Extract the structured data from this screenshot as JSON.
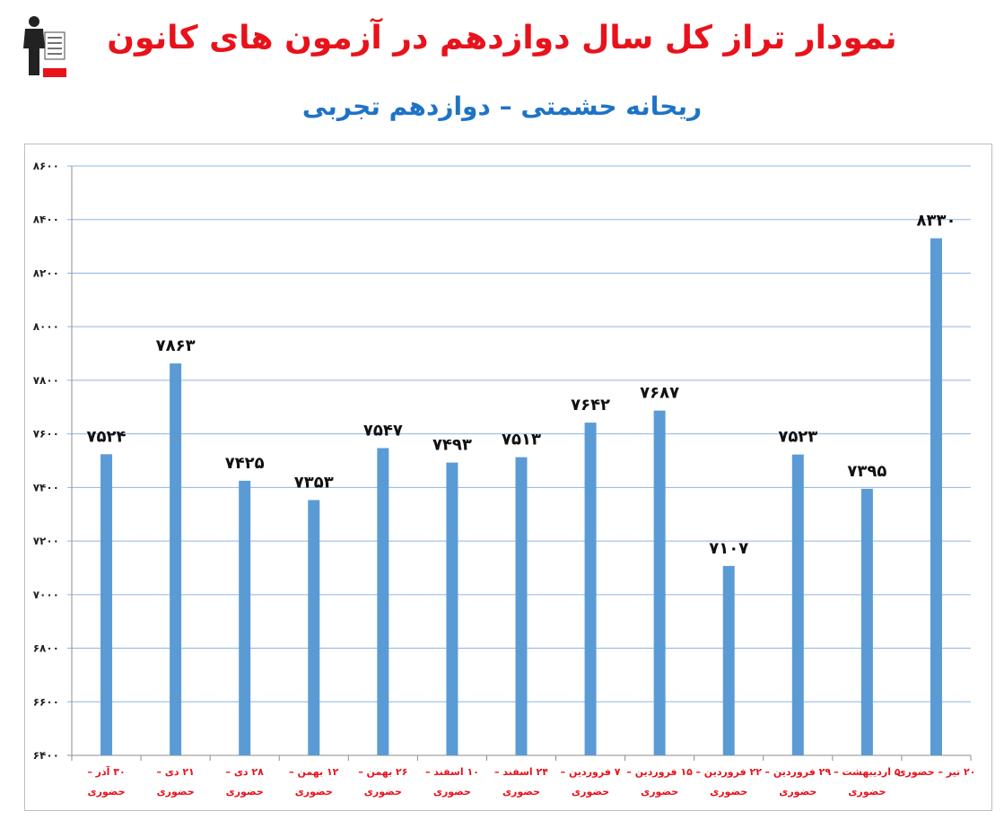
{
  "header": {
    "title": "نمودار تراز کل سال دوازدهم در آزمون های کانون",
    "subtitle": "ریحانه حشمتی – دوازدهم تجربی",
    "logo_label": "کانون فرهنگی آموزش"
  },
  "colors": {
    "title": "#e8121b",
    "subtitle": "#1f73c6",
    "bar": "#5b9bd5",
    "gridline": "#8eb4e3",
    "category_label": "#e8121b"
  },
  "chart_data": {
    "type": "bar",
    "categories": [
      [
        "۳۰ آذر –",
        "حضوری"
      ],
      [
        "۲۱ دی –",
        "حضوری"
      ],
      [
        "۲۸ دی –",
        "حضوری"
      ],
      [
        "۱۲ بهمن –",
        "حضوری"
      ],
      [
        "۲۶ بهمن –",
        "حضوری"
      ],
      [
        "۱۰ اسفند –",
        "حضوری"
      ],
      [
        "۲۴ اسفند –",
        "حضوری"
      ],
      [
        "۷ فروردین –",
        "حضوری"
      ],
      [
        "۱۵ فروردین –",
        "حضوری"
      ],
      [
        "۲۲ فروردین –",
        "حضوری"
      ],
      [
        "۲۹ فروردین –",
        "حضوری"
      ],
      [
        "۵ اردیبهشت –",
        "حضوری"
      ],
      [
        "۲۰ تیر – حضوری",
        ""
      ]
    ],
    "values": [
      7524,
      7863,
      7425,
      7353,
      7547,
      7493,
      7513,
      7642,
      7687,
      7107,
      7523,
      7395,
      8330
    ],
    "value_labels": [
      "۷۵۲۴",
      "۷۸۶۳",
      "۷۴۲۵",
      "۷۳۵۳",
      "۷۵۴۷",
      "۷۴۹۳",
      "۷۵۱۳",
      "۷۶۴۲",
      "۷۶۸۷",
      "۷۱۰۷",
      "۷۵۲۳",
      "۷۳۹۵",
      "۸۳۳۰"
    ],
    "ylim": [
      6400,
      8600
    ],
    "yticks": [
      6400,
      6600,
      6800,
      7000,
      7200,
      7400,
      7600,
      7800,
      8000,
      8200,
      8400,
      8600
    ],
    "ytick_labels": [
      "۶۴۰۰",
      "۶۶۰۰",
      "۶۸۰۰",
      "۷۰۰۰",
      "۷۲۰۰",
      "۷۴۰۰",
      "۷۶۰۰",
      "۷۸۰۰",
      "۸۰۰۰",
      "۸۲۰۰",
      "۸۴۰۰",
      "۸۶۰۰"
    ],
    "grid": true,
    "xlabel": "",
    "ylabel": ""
  }
}
